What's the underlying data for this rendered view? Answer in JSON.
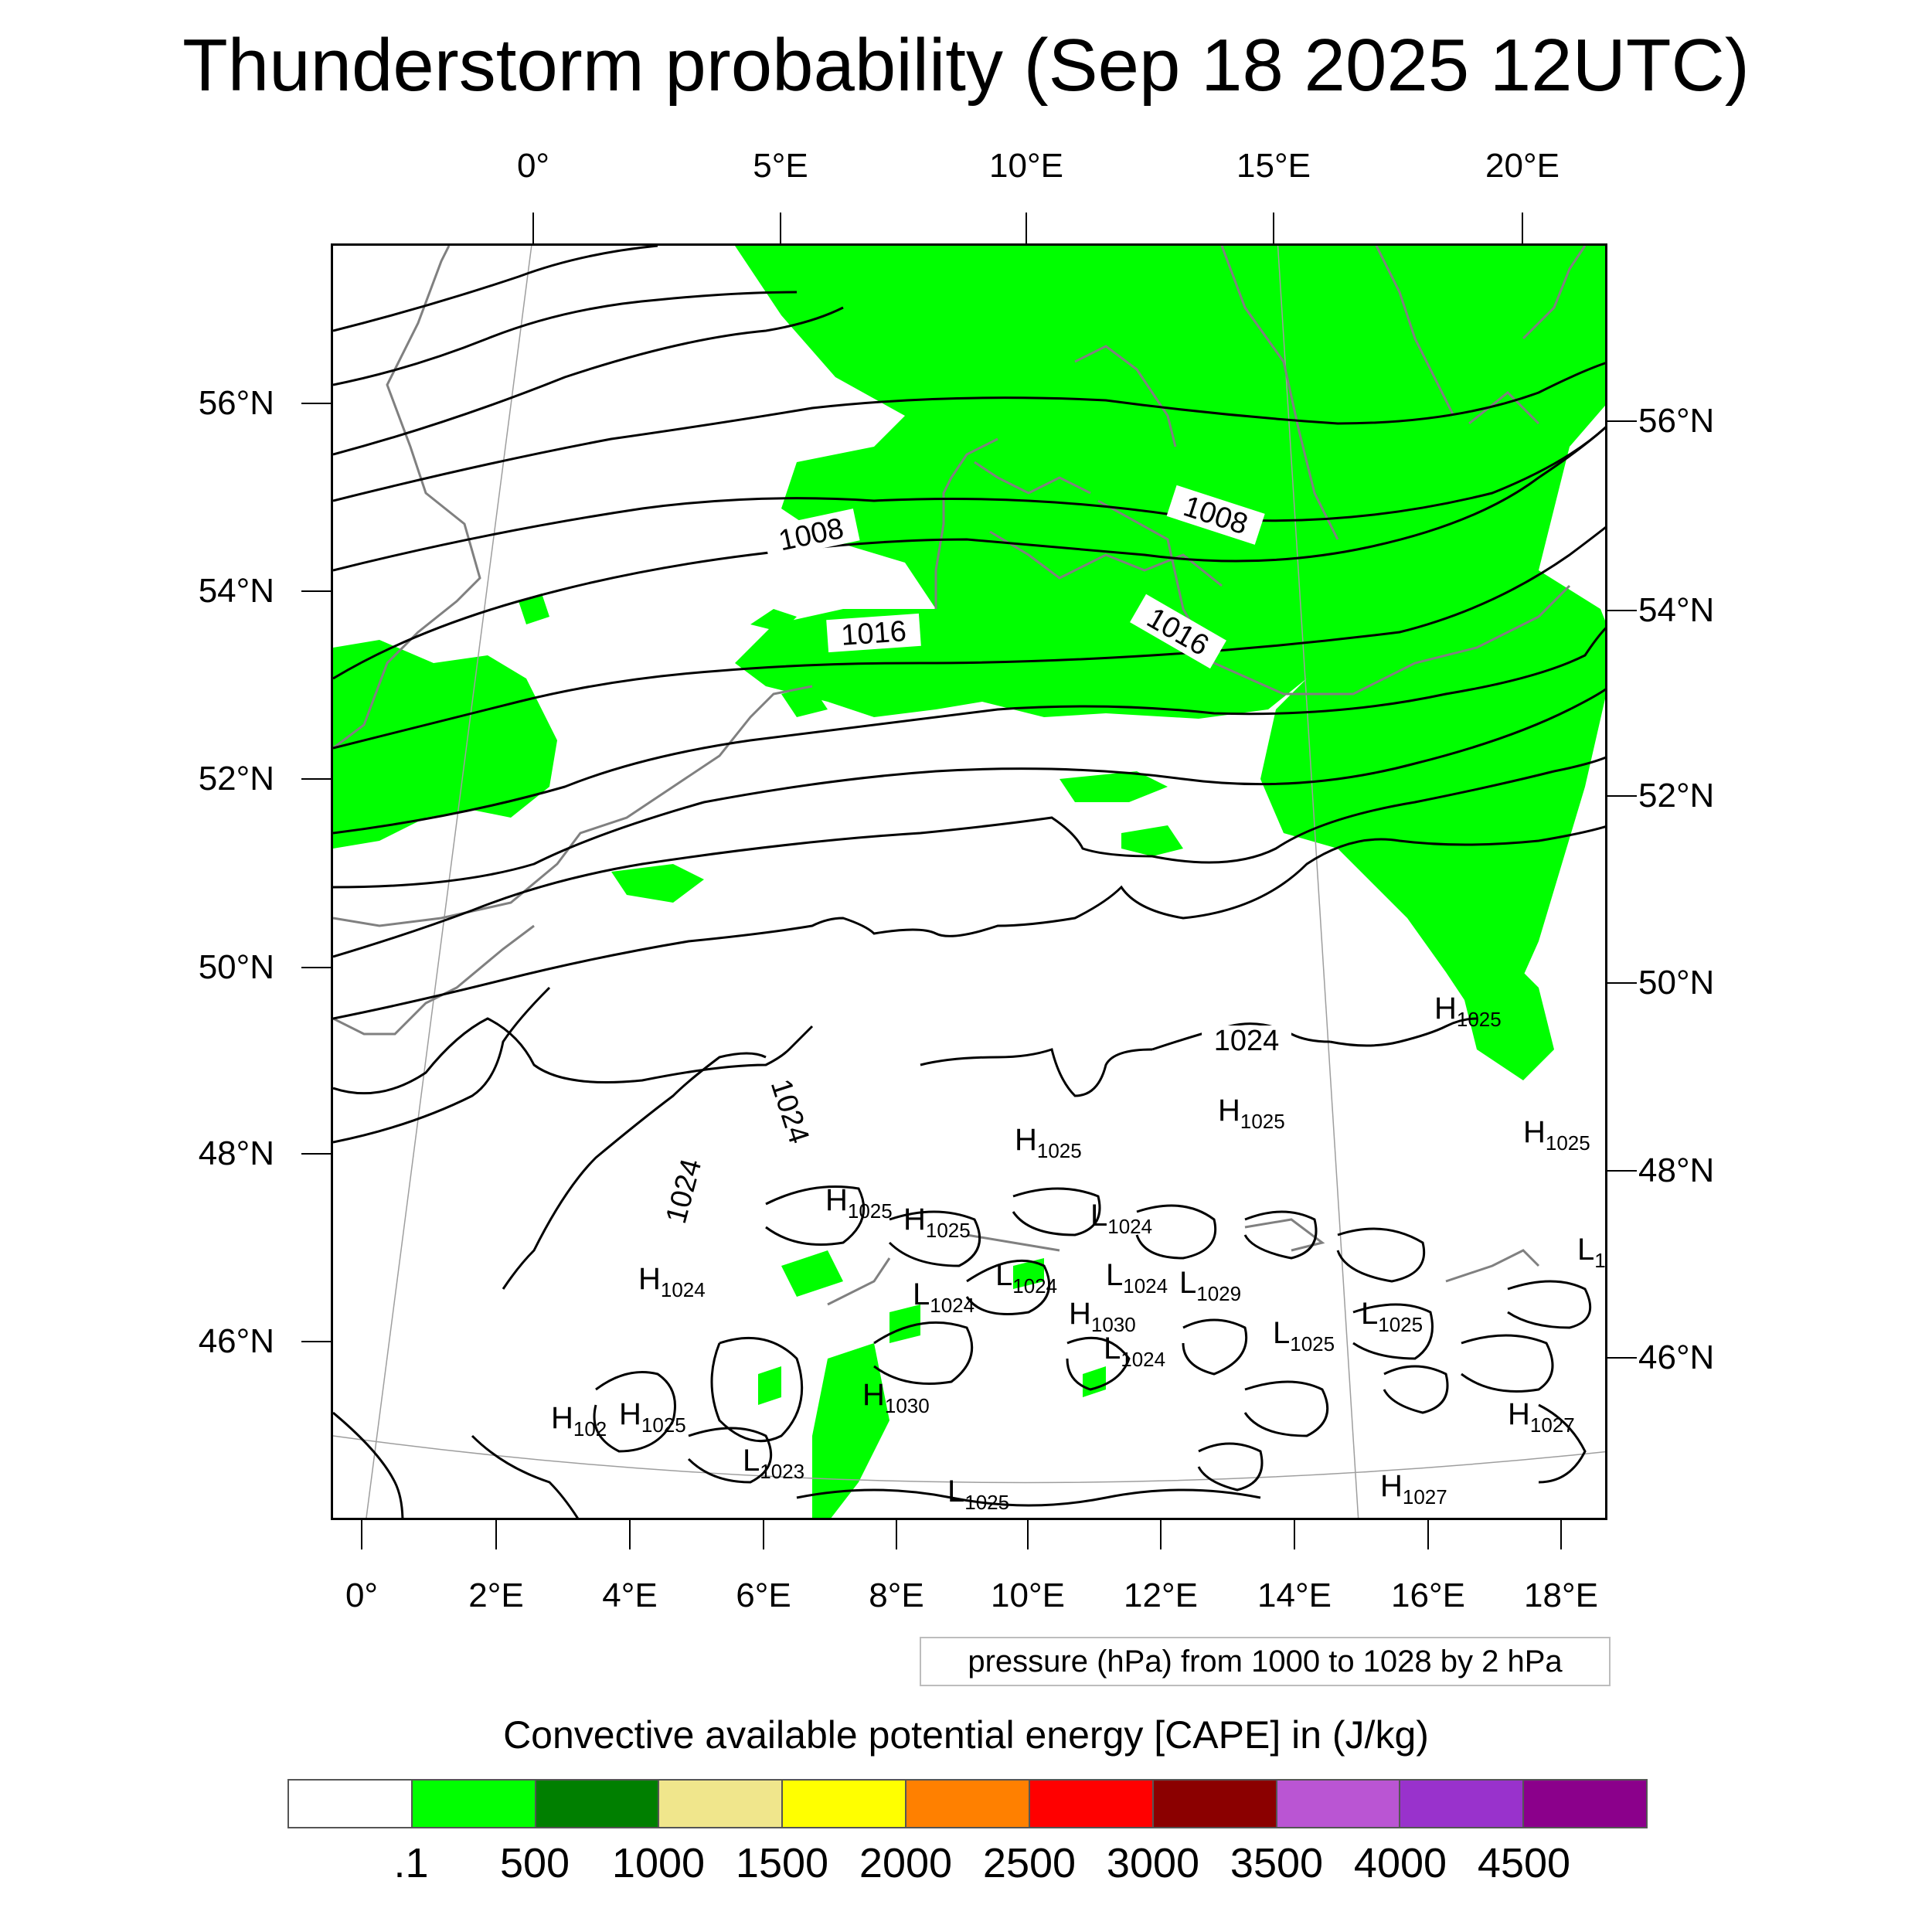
{
  "title": "Thunderstorm probability (Sep 18 2025 12UTC)",
  "top_lon_labels": [
    "0°",
    "5°E",
    "10°E",
    "15°E",
    "20°E"
  ],
  "bottom_lon_labels": [
    "0°",
    "2°E",
    "4°E",
    "6°E",
    "8°E",
    "10°E",
    "12°E",
    "14°E",
    "16°E",
    "18°E"
  ],
  "left_lat_labels": [
    "56°N",
    "54°N",
    "52°N",
    "50°N",
    "48°N",
    "46°N"
  ],
  "right_lat_labels": [
    "56°N",
    "54°N",
    "52°N",
    "50°N",
    "48°N",
    "46°N"
  ],
  "isobar_labels": [
    {
      "text": "1008"
    },
    {
      "text": "1008"
    },
    {
      "text": "1016"
    },
    {
      "text": "1016"
    },
    {
      "text": "1024"
    },
    {
      "text": "1024"
    },
    {
      "text": "1024"
    }
  ],
  "pressure_centers": [
    {
      "letter": "H",
      "value": "1025"
    },
    {
      "letter": "H",
      "value": "1025"
    },
    {
      "letter": "H",
      "value": "1025"
    },
    {
      "letter": "H",
      "value": "1025"
    },
    {
      "letter": "H",
      "value": "1025"
    },
    {
      "letter": "H",
      "value": "1025"
    },
    {
      "letter": "L",
      "value": "1024"
    },
    {
      "letter": "L",
      "value": "1024"
    },
    {
      "letter": "L",
      "value": "1024"
    },
    {
      "letter": "L",
      "value": "1029"
    },
    {
      "letter": "H",
      "value": "1024"
    },
    {
      "letter": "L",
      "value": "1024"
    },
    {
      "letter": "H",
      "value": "1030"
    },
    {
      "letter": "L",
      "value": "1025"
    },
    {
      "letter": "L",
      "value": "1025"
    },
    {
      "letter": "L",
      "value": "1024"
    },
    {
      "letter": "H",
      "value": "1030"
    },
    {
      "letter": "H",
      "value": "102"
    },
    {
      "letter": "H",
      "value": "1025"
    },
    {
      "letter": "H",
      "value": "1027"
    },
    {
      "letter": "L",
      "value": "1023"
    },
    {
      "letter": "L",
      "value": "1025"
    },
    {
      "letter": "H",
      "value": "1027"
    },
    {
      "letter": "L",
      "value": "1"
    }
  ],
  "pressure_note": "pressure (hPa) from 1000 to 1028 by 2 hPa",
  "legend": {
    "title": "Convective available potential energy [CAPE] in (J/kg)",
    "colors": [
      "#ffffff",
      "#00ff00",
      "#007f00",
      "#f0e68c",
      "#ffff00",
      "#ff8000",
      "#ff0000",
      "#8b0000",
      "#ba55d3",
      "#9932cc",
      "#8b008b"
    ],
    "labels": [
      ".1",
      "500",
      "1000",
      "1500",
      "2000",
      "2500",
      "3000",
      "3500",
      "4000",
      "4500"
    ]
  }
}
